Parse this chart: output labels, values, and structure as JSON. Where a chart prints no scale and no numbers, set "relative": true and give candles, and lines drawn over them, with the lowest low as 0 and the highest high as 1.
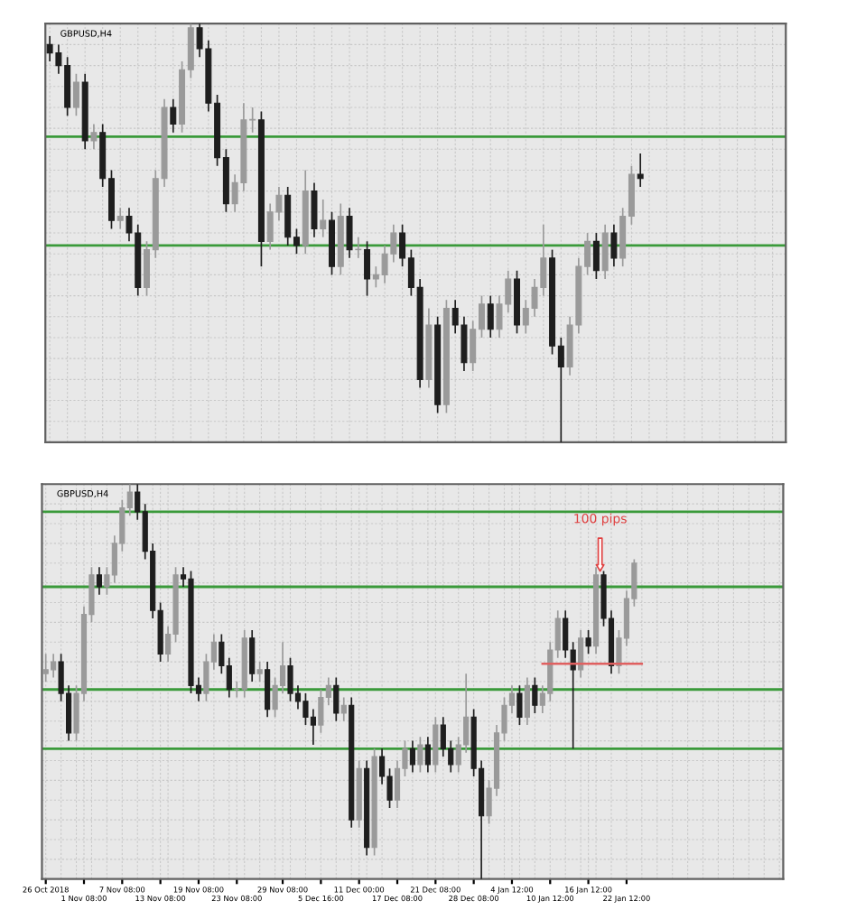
{
  "chart_data": [
    {
      "type": "candlestick",
      "title": "GBPUSD,H4",
      "relative": true,
      "grid": true,
      "tick_labels": false,
      "categories": [
        null,
        null,
        null,
        null,
        null,
        null,
        null,
        null,
        null,
        null,
        null,
        null,
        null,
        null,
        null,
        null,
        null,
        null,
        null,
        null,
        null,
        null,
        null,
        null,
        null,
        null,
        null,
        null,
        null,
        null,
        null,
        null,
        null,
        null,
        null,
        null,
        null,
        null,
        null,
        null,
        null,
        null,
        null,
        null,
        null,
        null,
        null,
        null,
        null,
        null,
        null,
        null,
        null,
        null,
        null,
        null,
        null,
        null,
        null,
        null,
        null,
        null,
        null,
        null,
        null,
        null,
        null,
        null,
        null,
        null,
        null,
        null,
        null,
        null,
        null,
        null,
        null,
        null,
        null,
        null,
        null,
        null,
        null,
        null
      ],
      "ohlc": [
        [
          0.95,
          0.97,
          0.91,
          0.93
        ],
        [
          0.93,
          0.95,
          0.88,
          0.9
        ],
        [
          0.9,
          0.92,
          0.78,
          0.8
        ],
        [
          0.8,
          0.88,
          0.78,
          0.86
        ],
        [
          0.86,
          0.88,
          0.7,
          0.72
        ],
        [
          0.72,
          0.76,
          0.7,
          0.74
        ],
        [
          0.74,
          0.76,
          0.61,
          0.63
        ],
        [
          0.63,
          0.65,
          0.51,
          0.53
        ],
        [
          0.53,
          0.56,
          0.51,
          0.54
        ],
        [
          0.54,
          0.56,
          0.48,
          0.5
        ],
        [
          0.5,
          0.52,
          0.35,
          0.37
        ],
        [
          0.37,
          0.48,
          0.35,
          0.46
        ],
        [
          0.46,
          0.65,
          0.44,
          0.63
        ],
        [
          0.63,
          0.82,
          0.61,
          0.8
        ],
        [
          0.8,
          0.82,
          0.74,
          0.76
        ],
        [
          0.76,
          0.91,
          0.74,
          0.89
        ],
        [
          0.89,
          1.0,
          0.87,
          0.99
        ],
        [
          0.99,
          1.0,
          0.92,
          0.94
        ],
        [
          0.94,
          0.96,
          0.79,
          0.81
        ],
        [
          0.81,
          0.83,
          0.66,
          0.68
        ],
        [
          0.68,
          0.7,
          0.55,
          0.57
        ],
        [
          0.57,
          0.64,
          0.55,
          0.62
        ],
        [
          0.62,
          0.81,
          0.6,
          0.77
        ],
        [
          0.77,
          0.8,
          0.74,
          0.77
        ],
        [
          0.77,
          0.79,
          0.42,
          0.48
        ],
        [
          0.48,
          0.57,
          0.46,
          0.55
        ],
        [
          0.55,
          0.61,
          0.53,
          0.59
        ],
        [
          0.59,
          0.61,
          0.47,
          0.49
        ],
        [
          0.49,
          0.51,
          0.45,
          0.47
        ],
        [
          0.47,
          0.65,
          0.45,
          0.6
        ],
        [
          0.6,
          0.62,
          0.49,
          0.51
        ],
        [
          0.51,
          0.58,
          0.49,
          0.53
        ],
        [
          0.53,
          0.55,
          0.4,
          0.42
        ],
        [
          0.42,
          0.57,
          0.4,
          0.54
        ],
        [
          0.54,
          0.56,
          0.44,
          0.46
        ],
        [
          0.46,
          0.49,
          0.44,
          0.46
        ],
        [
          0.46,
          0.48,
          0.35,
          0.39
        ],
        [
          0.39,
          0.42,
          0.37,
          0.4
        ],
        [
          0.4,
          0.47,
          0.38,
          0.45
        ],
        [
          0.45,
          0.52,
          0.43,
          0.5
        ],
        [
          0.5,
          0.52,
          0.42,
          0.44
        ],
        [
          0.44,
          0.46,
          0.35,
          0.37
        ],
        [
          0.37,
          0.39,
          0.13,
          0.15
        ],
        [
          0.15,
          0.32,
          0.13,
          0.28
        ],
        [
          0.28,
          0.3,
          0.07,
          0.09
        ],
        [
          0.09,
          0.34,
          0.07,
          0.32
        ],
        [
          0.32,
          0.34,
          0.26,
          0.28
        ],
        [
          0.28,
          0.3,
          0.17,
          0.19
        ],
        [
          0.19,
          0.29,
          0.17,
          0.27
        ],
        [
          0.27,
          0.35,
          0.25,
          0.33
        ],
        [
          0.33,
          0.35,
          0.25,
          0.27
        ],
        [
          0.27,
          0.35,
          0.25,
          0.33
        ],
        [
          0.33,
          0.41,
          0.31,
          0.39
        ],
        [
          0.39,
          0.41,
          0.26,
          0.28
        ],
        [
          0.28,
          0.34,
          0.26,
          0.32
        ],
        [
          0.32,
          0.39,
          0.3,
          0.37
        ],
        [
          0.37,
          0.52,
          0.35,
          0.44
        ],
        [
          0.44,
          0.46,
          0.21,
          0.23
        ],
        [
          0.23,
          0.25,
          0.0,
          0.18
        ],
        [
          0.18,
          0.3,
          0.16,
          0.28
        ],
        [
          0.28,
          0.44,
          0.26,
          0.42
        ],
        [
          0.42,
          0.5,
          0.4,
          0.48
        ],
        [
          0.48,
          0.5,
          0.39,
          0.41
        ],
        [
          0.41,
          0.52,
          0.39,
          0.5
        ],
        [
          0.5,
          0.52,
          0.42,
          0.44
        ],
        [
          0.44,
          0.56,
          0.42,
          0.54
        ],
        [
          0.54,
          0.66,
          0.52,
          0.64
        ],
        [
          0.64,
          0.69,
          0.61,
          0.63
        ],
        null,
        null,
        null,
        null,
        null,
        null,
        null,
        null,
        null,
        null,
        null,
        null,
        null,
        null,
        null,
        null
      ],
      "ref_lines": [
        {
          "axis": "y",
          "value": 0.73,
          "color": "#3a9a3a"
        },
        {
          "axis": "y",
          "value": 0.47,
          "color": "#3a9a3a"
        }
      ]
    },
    {
      "type": "candlestick",
      "title": "GBPUSD,H4",
      "relative": true,
      "grid": true,
      "tick_labels": "x",
      "categories": [
        "26 Oct 2018",
        null,
        null,
        null,
        null,
        "1 Nov 08:00",
        null,
        null,
        null,
        null,
        "7 Nov 08:00",
        null,
        null,
        null,
        null,
        "13 Nov 08:00",
        null,
        null,
        null,
        null,
        "19 Nov 08:00",
        null,
        null,
        null,
        null,
        "23 Nov 08:00",
        null,
        null,
        null,
        null,
        null,
        "29 Nov 08:00",
        null,
        null,
        null,
        null,
        "5 Dec 16:00",
        null,
        null,
        null,
        null,
        "11 Dec 00:00",
        null,
        null,
        null,
        null,
        "17 Dec 08:00",
        null,
        null,
        null,
        null,
        "21 Dec 08:00",
        null,
        null,
        null,
        null,
        "28 Dec 08:00",
        null,
        null,
        null,
        null,
        "4 Jan 12:00",
        null,
        null,
        null,
        null,
        "10 Jan 12:00",
        null,
        null,
        null,
        null,
        "16 Jan 12:00",
        null,
        null,
        null,
        null,
        "22 Jan 12:00",
        null,
        null,
        null,
        null,
        null,
        null,
        null,
        null,
        null,
        null,
        null,
        null,
        null,
        null,
        null,
        null,
        null,
        null,
        null,
        null
      ],
      "ohlc": [
        [
          0.52,
          0.57,
          0.5,
          0.53
        ],
        [
          0.53,
          0.57,
          0.51,
          0.55
        ],
        [
          0.55,
          0.57,
          0.45,
          0.47
        ],
        [
          0.47,
          0.49,
          0.35,
          0.37
        ],
        [
          0.37,
          0.49,
          0.35,
          0.47
        ],
        [
          0.47,
          0.69,
          0.45,
          0.67
        ],
        [
          0.67,
          0.79,
          0.65,
          0.77
        ],
        [
          0.77,
          0.79,
          0.72,
          0.74
        ],
        [
          0.74,
          0.79,
          0.72,
          0.77
        ],
        [
          0.77,
          0.87,
          0.75,
          0.85
        ],
        [
          0.85,
          0.96,
          0.83,
          0.94
        ],
        [
          0.94,
          1.0,
          0.92,
          0.98
        ],
        [
          0.98,
          1.0,
          0.91,
          0.93
        ],
        [
          0.93,
          0.95,
          0.81,
          0.83
        ],
        [
          0.83,
          0.85,
          0.66,
          0.68
        ],
        [
          0.68,
          0.7,
          0.55,
          0.57
        ],
        [
          0.57,
          0.64,
          0.55,
          0.62
        ],
        [
          0.62,
          0.79,
          0.6,
          0.77
        ],
        [
          0.77,
          0.79,
          0.74,
          0.76
        ],
        [
          0.76,
          0.78,
          0.47,
          0.49
        ],
        [
          0.49,
          0.51,
          0.45,
          0.47
        ],
        [
          0.47,
          0.57,
          0.45,
          0.55
        ],
        [
          0.55,
          0.62,
          0.53,
          0.6
        ],
        [
          0.6,
          0.62,
          0.52,
          0.54
        ],
        [
          0.54,
          0.56,
          0.46,
          0.48
        ],
        [
          0.48,
          0.5,
          0.46,
          0.48
        ],
        [
          0.48,
          0.63,
          0.46,
          0.61
        ],
        [
          0.61,
          0.63,
          0.5,
          0.52
        ],
        [
          0.52,
          0.55,
          0.5,
          0.53
        ],
        [
          0.53,
          0.55,
          0.41,
          0.43
        ],
        [
          0.43,
          0.51,
          0.41,
          0.49
        ],
        [
          0.49,
          0.6,
          0.47,
          0.54
        ],
        [
          0.54,
          0.56,
          0.45,
          0.47
        ],
        [
          0.47,
          0.49,
          0.43,
          0.45
        ],
        [
          0.45,
          0.47,
          0.39,
          0.41
        ],
        [
          0.41,
          0.43,
          0.34,
          0.39
        ],
        [
          0.39,
          0.48,
          0.37,
          0.46
        ],
        [
          0.46,
          0.51,
          0.44,
          0.49
        ],
        [
          0.49,
          0.51,
          0.4,
          0.42
        ],
        [
          0.42,
          0.46,
          0.4,
          0.44
        ],
        [
          0.44,
          0.46,
          0.13,
          0.15
        ],
        [
          0.15,
          0.3,
          0.13,
          0.28
        ],
        [
          0.28,
          0.3,
          0.06,
          0.08
        ],
        [
          0.08,
          0.33,
          0.06,
          0.31
        ],
        [
          0.31,
          0.33,
          0.24,
          0.26
        ],
        [
          0.26,
          0.28,
          0.18,
          0.2
        ],
        [
          0.2,
          0.3,
          0.18,
          0.28
        ],
        [
          0.28,
          0.35,
          0.26,
          0.33
        ],
        [
          0.33,
          0.35,
          0.27,
          0.29
        ],
        [
          0.29,
          0.36,
          0.27,
          0.34
        ],
        [
          0.34,
          0.36,
          0.27,
          0.29
        ],
        [
          0.29,
          0.41,
          0.27,
          0.39
        ],
        [
          0.39,
          0.41,
          0.31,
          0.33
        ],
        [
          0.33,
          0.35,
          0.27,
          0.29
        ],
        [
          0.29,
          0.36,
          0.27,
          0.34
        ],
        [
          0.34,
          0.52,
          0.32,
          0.41
        ],
        [
          0.41,
          0.43,
          0.26,
          0.28
        ],
        [
          0.28,
          0.3,
          0.0,
          0.16
        ],
        [
          0.16,
          0.25,
          0.14,
          0.23
        ],
        [
          0.23,
          0.39,
          0.21,
          0.37
        ],
        [
          0.37,
          0.46,
          0.35,
          0.44
        ],
        [
          0.44,
          0.49,
          0.42,
          0.47
        ],
        [
          0.47,
          0.49,
          0.39,
          0.41
        ],
        [
          0.41,
          0.51,
          0.39,
          0.49
        ],
        [
          0.49,
          0.51,
          0.42,
          0.44
        ],
        [
          0.44,
          0.49,
          0.42,
          0.47
        ],
        [
          0.47,
          0.6,
          0.45,
          0.58
        ],
        [
          0.58,
          0.68,
          0.56,
          0.66
        ],
        [
          0.66,
          0.68,
          0.56,
          0.58
        ],
        [
          0.58,
          0.6,
          0.33,
          0.53
        ],
        [
          0.53,
          0.63,
          0.51,
          0.61
        ],
        [
          0.61,
          0.63,
          0.57,
          0.59
        ],
        [
          0.59,
          0.79,
          0.57,
          0.77
        ],
        [
          0.77,
          0.78,
          0.64,
          0.66
        ],
        [
          0.66,
          0.68,
          0.52,
          0.54
        ],
        [
          0.54,
          0.63,
          0.52,
          0.61
        ],
        [
          0.61,
          0.73,
          0.59,
          0.71
        ],
        [
          0.71,
          0.81,
          0.69,
          0.8
        ],
        null,
        null,
        null,
        null,
        null,
        null,
        null,
        null,
        null,
        null,
        null,
        null,
        null,
        null,
        null,
        null,
        null,
        null,
        null
      ],
      "series": [
        {
          "type": "line",
          "color": "#e06060",
          "values": [
            null,
            null,
            null,
            null,
            null,
            null,
            null,
            null,
            null,
            null,
            null,
            null,
            null,
            null,
            null,
            null,
            null,
            null,
            null,
            null,
            null,
            null,
            null,
            null,
            null,
            null,
            null,
            null,
            null,
            null,
            null,
            null,
            null,
            null,
            null,
            null,
            null,
            null,
            null,
            null,
            null,
            null,
            null,
            null,
            null,
            null,
            null,
            null,
            null,
            null,
            null,
            null,
            null,
            null,
            null,
            null,
            null,
            null,
            null,
            null,
            null,
            null,
            null,
            null,
            null,
            0.545,
            0.545,
            0.545,
            0.545,
            0.545,
            0.545,
            0.545,
            0.545,
            0.545,
            0.545,
            0.545,
            0.545,
            0.545,
            0.545,
            null,
            null,
            null,
            null,
            null,
            null,
            null,
            null,
            null,
            null,
            null,
            null,
            null,
            null,
            null,
            null,
            null,
            null
          ]
        }
      ],
      "ref_lines": [
        {
          "axis": "y",
          "value": 0.93,
          "color": "#3a9a3a"
        },
        {
          "axis": "y",
          "value": 0.74,
          "color": "#3a9a3a"
        },
        {
          "axis": "y",
          "value": 0.48,
          "color": "#3a9a3a"
        },
        {
          "axis": "y",
          "value": 0.33,
          "color": "#3a9a3a"
        }
      ],
      "annotations": [
        "100 pips"
      ]
    }
  ]
}
